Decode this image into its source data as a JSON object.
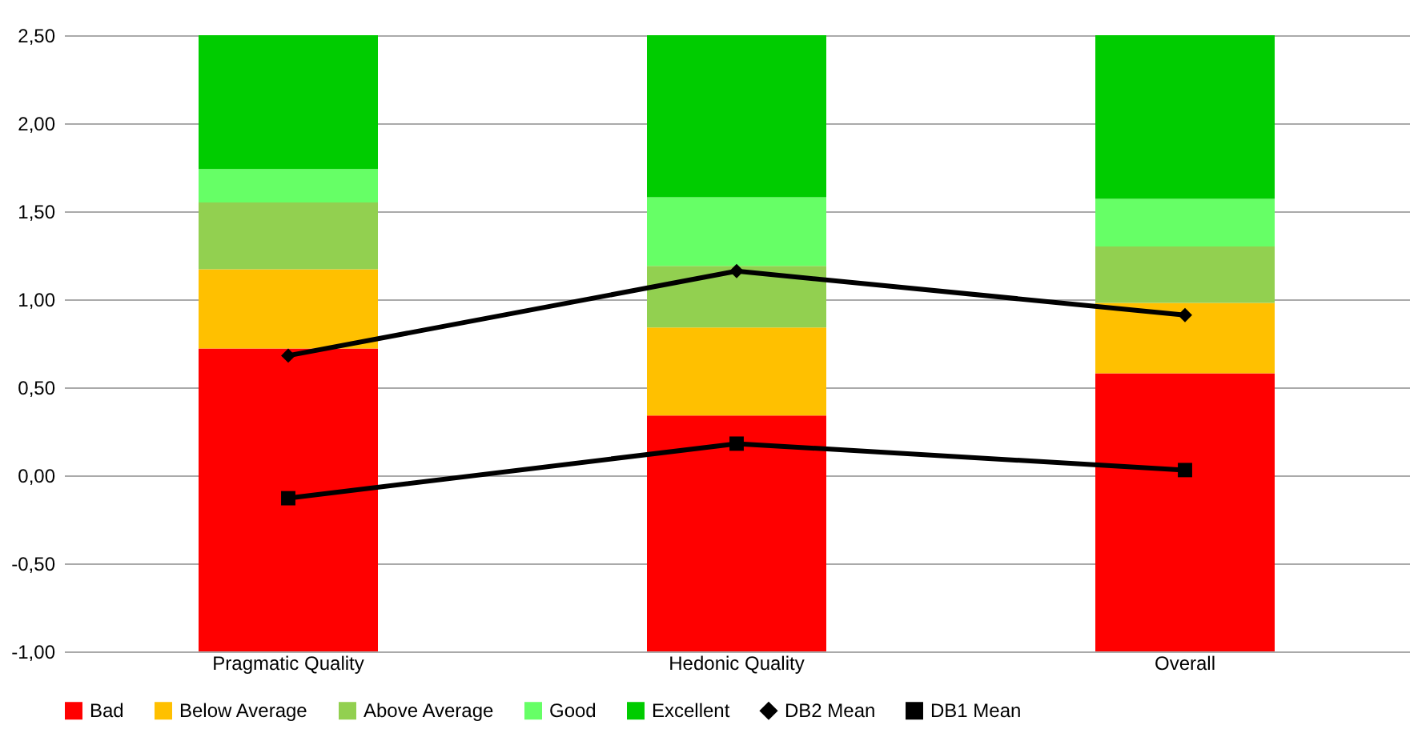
{
  "chart_data": {
    "type": "bar",
    "categories": [
      "Pragmatic Quality",
      "Hedonic Quality",
      "Overall"
    ],
    "series": [
      {
        "name": "Bad",
        "color": "#ff0000",
        "base": [
          -1,
          -1,
          -1
        ],
        "values": [
          1.72,
          1.34,
          1.58
        ]
      },
      {
        "name": "Below Average",
        "color": "#ffc000",
        "base": [
          0.72,
          0.34,
          0.58
        ],
        "values": [
          0.45,
          0.5,
          0.4
        ]
      },
      {
        "name": "Above Average",
        "color": "#92d050",
        "base": [
          1.17,
          0.84,
          0.98
        ],
        "values": [
          0.38,
          0.35,
          0.32
        ]
      },
      {
        "name": "Good",
        "color": "#66ff66",
        "base": [
          1.55,
          1.19,
          1.3
        ],
        "values": [
          0.19,
          0.39,
          0.27
        ]
      },
      {
        "name": "Excellent",
        "color": "#00cc00",
        "base": [
          1.74,
          1.58,
          1.57
        ],
        "values": [
          0.76,
          0.92,
          0.93
        ]
      },
      {
        "name": "DB2 Mean",
        "type": "line",
        "marker": "diamond",
        "color": "#000000",
        "values": [
          0.68,
          1.16,
          0.91
        ]
      },
      {
        "name": "DB1 Mean",
        "type": "line",
        "marker": "square",
        "color": "#000000",
        "values": [
          -0.13,
          0.18,
          0.03
        ]
      }
    ],
    "ylim": [
      -1,
      2.5
    ],
    "yticks": [
      {
        "value": -1,
        "label": "-1,00"
      },
      {
        "value": -0.5,
        "label": "-0,50"
      },
      {
        "value": 0,
        "label": "0,00"
      },
      {
        "value": 0.5,
        "label": "0,50"
      },
      {
        "value": 1,
        "label": "1,00"
      },
      {
        "value": 1.5,
        "label": "1,50"
      },
      {
        "value": 2,
        "label": "2,00"
      },
      {
        "value": 2.5,
        "label": "2,50"
      }
    ],
    "grid": "y",
    "legend": "bottom"
  }
}
